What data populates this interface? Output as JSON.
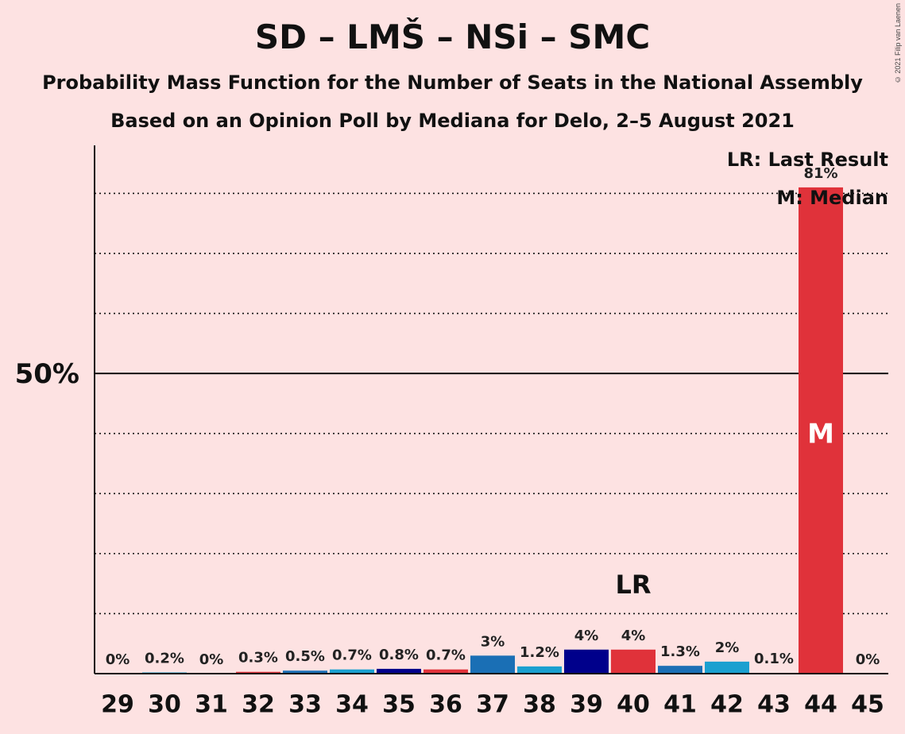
{
  "header": {
    "title": "SD – LMŠ – NSi – SMC",
    "subtitle1": "Probability Mass Function for the Number of Seats in the National Assembly",
    "subtitle2": "Based on an Opinion Poll by Mediana for Delo, 2–5 August 2021",
    "copyright": "© 2021 Filip van Laenen"
  },
  "legend": {
    "last_result": "LR: Last Result",
    "median": "M: Median"
  },
  "chart_data": {
    "type": "bar",
    "title": "SD – LMŠ – NSi – SMC",
    "categories": [
      "29",
      "30",
      "31",
      "32",
      "33",
      "34",
      "35",
      "36",
      "37",
      "38",
      "39",
      "40",
      "41",
      "42",
      "43",
      "44",
      "45"
    ],
    "values": [
      0,
      0.2,
      0,
      0.3,
      0.5,
      0.7,
      0.8,
      0.7,
      3,
      1.2,
      4,
      4,
      1.3,
      2,
      0.1,
      81,
      0
    ],
    "labels": [
      "0%",
      "0.2%",
      "0%",
      "0.3%",
      "0.5%",
      "0.7%",
      "0.8%",
      "0.7%",
      "3%",
      "1.2%",
      "4%",
      "4%",
      "1.3%",
      "2%",
      "0.1%",
      "81%",
      "0%"
    ],
    "colors": [
      "#1a6fb5",
      "#1aa0d0",
      "#1a6fb5",
      "#e0323a",
      "#1a6fb5",
      "#1aa0d0",
      "#00008b",
      "#e0323a",
      "#1a6fb5",
      "#1aa0d0",
      "#00008b",
      "#e0323a",
      "#1a6fb5",
      "#1aa0d0",
      "#1a6fb5",
      "#e0323a",
      "#1a6fb5"
    ],
    "ylim": [
      0,
      88
    ],
    "y_ticks": [
      {
        "value": 50,
        "label": "50%"
      }
    ],
    "gridlines": [
      10,
      20,
      30,
      40,
      60,
      70,
      80
    ],
    "last_result_seat": "40",
    "last_result_label": "LR",
    "median_seat": "44",
    "median_label": "M",
    "legend_position": "top-right"
  }
}
